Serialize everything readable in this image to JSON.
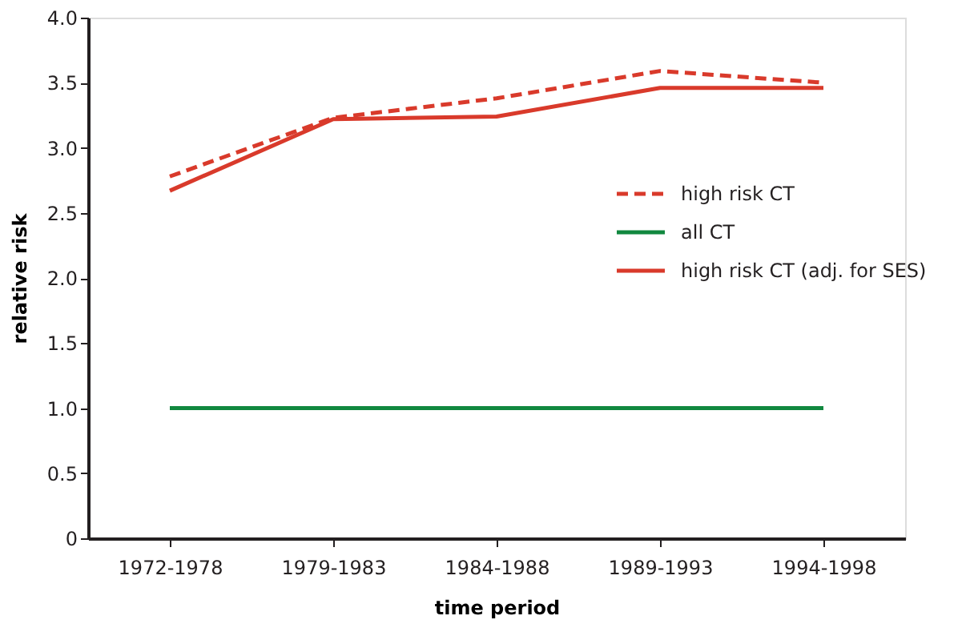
{
  "chart_data": {
    "type": "line",
    "xlabel": "time period",
    "ylabel": "relative risk",
    "categories": [
      "1972-1978",
      "1979-1983",
      "1984-1988",
      "1989-1993",
      "1994-1998"
    ],
    "series": [
      {
        "name": "high risk CT",
        "color": "#d93a2b",
        "line_style": "dashed",
        "values": [
          2.78,
          3.23,
          3.38,
          3.59,
          3.5
        ]
      },
      {
        "name": "all CT",
        "color": "#11883f",
        "line_style": "solid",
        "values": [
          1.0,
          1.0,
          1.0,
          1.0,
          1.0
        ]
      },
      {
        "name": "high risk CT (adj. for SES)",
        "color": "#d93a2b",
        "line_style": "solid",
        "values": [
          2.67,
          3.22,
          3.24,
          3.46,
          3.46
        ]
      }
    ],
    "ylim": [
      0,
      4.0
    ],
    "yticks": [
      0,
      {
        "value": 0.5,
        "label": "0.5"
      },
      {
        "value": 1,
        "label": "1.0"
      },
      {
        "value": 1.5,
        "label": "1.5"
      },
      {
        "value": 2,
        "label": "2.0"
      },
      {
        "value": 2.5,
        "label": "2.5"
      },
      {
        "value": 3,
        "label": "3.0"
      },
      {
        "value": 3.5,
        "label": "3.5"
      },
      {
        "value": 4,
        "label": "4.0"
      }
    ],
    "grid": false,
    "legend": "right",
    "marker": "none"
  }
}
